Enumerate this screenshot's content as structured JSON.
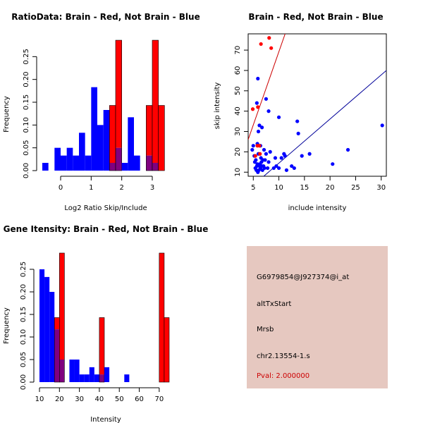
{
  "colors": {
    "brain": "#ff0000",
    "not_brain": "#0000ff",
    "overlap": "#800080",
    "info_bg": "#e6c8c0",
    "pval": "#cc0000",
    "red_line": "#cc0000",
    "blue_line": "#000099"
  },
  "chart_data": [
    {
      "id": "ratio",
      "type": "bar",
      "title": "RatioData: Brain - Red, Not Brain - Blue",
      "xlabel": "Log2 Ratio Skip/Include",
      "ylabel": "Frequency",
      "xlim": [
        -0.6,
        3.6
      ],
      "ylim": [
        0,
        0.3
      ],
      "xticks": [
        0,
        1,
        2,
        3
      ],
      "yticks": [
        0.0,
        0.05,
        0.1,
        0.15,
        0.2,
        0.25
      ],
      "ytick_labels": [
        "0.00",
        "0.05",
        "0.10",
        "0.15",
        "0.20",
        "0.25"
      ],
      "bin_width": 0.2,
      "blue_bins": [
        [
          -0.6,
          0.017
        ],
        [
          -0.2,
          0.05
        ],
        [
          0.0,
          0.033
        ],
        [
          0.2,
          0.05
        ],
        [
          0.4,
          0.033
        ],
        [
          0.6,
          0.083
        ],
        [
          0.8,
          0.033
        ],
        [
          1.0,
          0.183
        ],
        [
          1.2,
          0.1
        ],
        [
          1.4,
          0.133
        ],
        [
          1.6,
          0.017
        ],
        [
          1.8,
          0.05
        ],
        [
          2.0,
          0.017
        ],
        [
          2.2,
          0.117
        ],
        [
          2.4,
          0.033
        ],
        [
          2.8,
          0.033
        ],
        [
          3.0,
          0.017
        ]
      ],
      "red_bins": [
        [
          1.6,
          0.143
        ],
        [
          1.8,
          0.286
        ],
        [
          2.8,
          0.143
        ],
        [
          3.0,
          0.286
        ],
        [
          3.2,
          0.143
        ]
      ]
    },
    {
      "id": "scatter",
      "type": "scatter",
      "title": "Brain - Red, Not Brain - Blue",
      "xlabel": "include intensity",
      "ylabel": "skip intensity",
      "xlim": [
        4,
        31
      ],
      "ylim": [
        8,
        78
      ],
      "xticks": [
        5,
        10,
        15,
        20,
        25,
        30
      ],
      "yticks": [
        10,
        20,
        30,
        40,
        50,
        60,
        70
      ],
      "red_points": [
        [
          4.9,
          41
        ],
        [
          5.4,
          18
        ],
        [
          5.8,
          23
        ],
        [
          5.9,
          42
        ],
        [
          6.3,
          19
        ],
        [
          6.5,
          73
        ],
        [
          8.1,
          76
        ],
        [
          8.5,
          71
        ],
        [
          6.2,
          23
        ]
      ],
      "blue_points": [
        [
          4.8,
          21
        ],
        [
          5.0,
          23
        ],
        [
          5.2,
          18
        ],
        [
          5.3,
          15
        ],
        [
          5.4,
          12
        ],
        [
          5.5,
          16
        ],
        [
          5.6,
          11
        ],
        [
          5.7,
          13
        ],
        [
          5.8,
          14
        ],
        [
          5.9,
          10
        ],
        [
          6.0,
          19
        ],
        [
          6.1,
          11
        ],
        [
          6.2,
          13
        ],
        [
          6.3,
          14
        ],
        [
          6.4,
          12
        ],
        [
          6.5,
          17
        ],
        [
          6.6,
          15
        ],
        [
          6.7,
          13
        ],
        [
          6.8,
          11
        ],
        [
          6.9,
          16
        ],
        [
          7.0,
          13
        ],
        [
          7.2,
          12
        ],
        [
          7.3,
          16
        ],
        [
          7.5,
          19
        ],
        [
          7.8,
          12
        ],
        [
          8.0,
          15
        ],
        [
          8.3,
          20
        ],
        [
          5.7,
          44
        ],
        [
          5.9,
          56
        ],
        [
          6.0,
          30
        ],
        [
          6.2,
          33
        ],
        [
          6.7,
          32
        ],
        [
          7.5,
          46
        ],
        [
          8.0,
          40
        ],
        [
          7.1,
          21
        ],
        [
          6.4,
          23
        ],
        [
          5.8,
          24
        ],
        [
          9.0,
          12
        ],
        [
          9.5,
          13
        ],
        [
          10.0,
          12
        ],
        [
          10.5,
          17
        ],
        [
          11.0,
          19
        ],
        [
          11.2,
          18
        ],
        [
          11.5,
          11
        ],
        [
          12.5,
          13
        ],
        [
          13.0,
          12
        ],
        [
          13.6,
          35
        ],
        [
          13.8,
          29
        ],
        [
          14.5,
          18
        ],
        [
          16.0,
          19
        ],
        [
          20.5,
          14
        ],
        [
          23.5,
          21
        ],
        [
          30.2,
          33
        ],
        [
          10.0,
          37
        ],
        [
          9.3,
          17
        ]
      ],
      "red_line": [
        [
          4,
          26
        ],
        [
          11.5,
          80
        ]
      ],
      "blue_line": [
        [
          4,
          1.4
        ],
        [
          31,
          60
        ]
      ]
    },
    {
      "id": "gene",
      "type": "bar",
      "title": "Gene Itensity: Brain - Red, Not Brain - Blue",
      "xlabel": "Intensity",
      "ylabel": "Frequency",
      "xlim": [
        10,
        75
      ],
      "ylim": [
        0,
        0.3
      ],
      "xticks": [
        10,
        20,
        30,
        40,
        50,
        60,
        70
      ],
      "yticks": [
        0.0,
        0.05,
        0.1,
        0.15,
        0.2,
        0.25
      ],
      "ytick_labels": [
        "0.00",
        "0.05",
        "0.10",
        "0.15",
        "0.20",
        "0.25"
      ],
      "bin_width": 2.5,
      "blue_bins": [
        [
          10.0,
          0.25
        ],
        [
          12.5,
          0.233
        ],
        [
          15.0,
          0.2
        ],
        [
          17.5,
          0.117
        ],
        [
          20.0,
          0.05
        ],
        [
          25.0,
          0.05
        ],
        [
          27.5,
          0.05
        ],
        [
          30.0,
          0.017
        ],
        [
          32.5,
          0.017
        ],
        [
          35.0,
          0.033
        ],
        [
          37.5,
          0.017
        ],
        [
          40.0,
          0.017
        ],
        [
          42.5,
          0.033
        ],
        [
          52.5,
          0.017
        ]
      ],
      "red_bins": [
        [
          17.5,
          0.143
        ],
        [
          20.0,
          0.286
        ],
        [
          40.0,
          0.143
        ],
        [
          70.0,
          0.286
        ],
        [
          72.5,
          0.143
        ]
      ]
    }
  ],
  "info_box": {
    "probe": "G6979854@J927374@i_at",
    "event": "altTxStart",
    "gene": "Mrsb",
    "location": "chr2.13554-1.s",
    "pval": "Pval: 2.000000"
  }
}
